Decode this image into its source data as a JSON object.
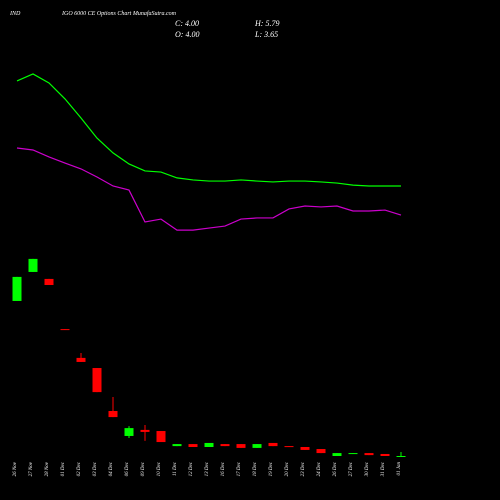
{
  "chart_data": {
    "type": "candlestick",
    "title_left": "IND",
    "title": "IGO 6000  CE Options  Chart MunafaSutra.com",
    "close_label": "C: 4.00",
    "open_label": "O: 4.00",
    "high_label": "H: 5.79",
    "low_label": "L: 3.65",
    "categories": [
      "26 Nov",
      "27 Nov",
      "28 Nov",
      "01 Dec",
      "02 Dec",
      "03 Dec",
      "04 Dec",
      "06 Dec",
      "09 Dec",
      "10 Dec",
      "11 Dec",
      "12 Dec",
      "13 Dec",
      "16 Dec",
      "17 Dec",
      "18 Dec",
      "19 Dec",
      "20 Dec",
      "23 Dec",
      "24 Dec",
      "26 Dec",
      "27 Dec",
      "30 Dec",
      "31 Dec",
      "01 Jan"
    ],
    "open": [
      72.9,
      85.8,
      82.7,
      60.4,
      47.6,
      43.1,
      24.0,
      12.9,
      15.6,
      15.1,
      8.4,
      9.3,
      8.0,
      9.3,
      9.3,
      7.6,
      9.8,
      8.4,
      8.0,
      7.1,
      4.0,
      4.9,
      5.3,
      4.9,
      4.0
    ],
    "high": [
      83.6,
      91.6,
      82.7,
      60.4,
      49.8,
      43.1,
      30.2,
      17.3,
      17.8,
      15.1,
      9.3,
      9.3,
      9.8,
      9.3,
      9.3,
      9.3,
      9.8,
      8.4,
      8.0,
      7.1,
      5.3,
      5.3,
      5.3,
      4.9,
      5.79
    ],
    "low": [
      72.9,
      85.8,
      80.0,
      60.0,
      45.8,
      32.4,
      21.3,
      12.0,
      10.7,
      10.2,
      8.4,
      8.0,
      8.0,
      8.4,
      7.6,
      7.6,
      8.4,
      8.0,
      6.7,
      5.3,
      4.0,
      4.9,
      4.4,
      4.0,
      3.65
    ],
    "close": [
      83.6,
      91.6,
      80.0,
      60.0,
      45.8,
      32.4,
      21.3,
      16.4,
      14.7,
      10.2,
      9.3,
      8.0,
      9.8,
      8.4,
      7.6,
      9.3,
      8.4,
      8.0,
      6.7,
      5.3,
      5.3,
      5.3,
      4.4,
      4.0,
      4.0
    ],
    "up_color": "#00ff00",
    "down_color": "#ff0000",
    "lines": [
      {
        "color": "#00ff00",
        "values": [
          170.7,
          173.8,
          169.8,
          162.7,
          154.2,
          145.3,
          138.7,
          133.8,
          130.7,
          130.2,
          127.6,
          126.7,
          126.2,
          126.2,
          126.7,
          126.2,
          125.8,
          126.2,
          126.2,
          125.8,
          125.3,
          124.4,
          124.0,
          124.0,
          124.0
        ]
      },
      {
        "color": "#cc00cc",
        "values": [
          140.9,
          140.0,
          136.9,
          134.2,
          131.6,
          128.0,
          124.0,
          122.2,
          108.0,
          109.3,
          104.4,
          104.4,
          105.3,
          106.2,
          109.3,
          109.8,
          109.8,
          113.8,
          115.1,
          114.7,
          115.1,
          112.9,
          112.9,
          113.3,
          111.1
        ]
      }
    ],
    "ylim": [
      0,
      200
    ]
  }
}
